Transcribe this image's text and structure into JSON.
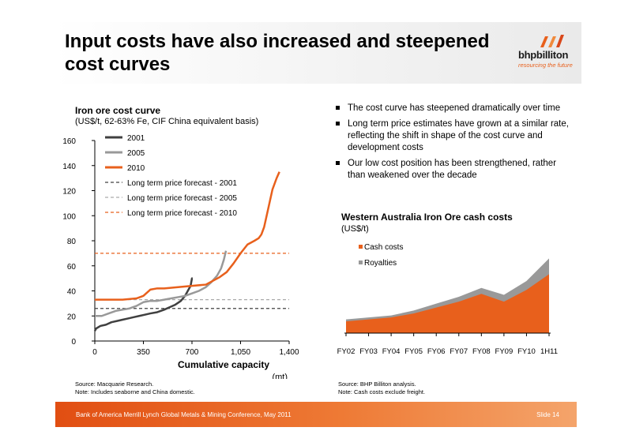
{
  "header": {
    "title": "Input costs have also increased and steepened cost curves",
    "logo_text": "bhpbilliton",
    "logo_tagline": "resourcing the future"
  },
  "left_chart": {
    "title": "Iron ore cost curve",
    "subtitle": "(US$/t, 62-63% Fe, CIF China equivalent basis)",
    "source": "Source:  Macquarie Research.",
    "note": "Note:  Includes seaborne and China domestic."
  },
  "bullets": [
    "The cost curve has steepened dramatically over time",
    "Long term price estimates have grown at a similar rate, reflecting the shift in shape of the cost curve and development costs",
    "Our low cost position has been strengthened, rather than weakened over the decade"
  ],
  "right_chart": {
    "title": "Western Australia Iron Ore cash costs",
    "subtitle": "(US$/t)",
    "source": "Source:  BHP Billiton analysis.",
    "note": "Note:  Cash costs exclude freight."
  },
  "footer": {
    "conference": "Bank of America Merrill Lynch Global Metals & Mining Conference, May 2011",
    "slide": "Slide 14"
  },
  "colors": {
    "accent": "#e8601c",
    "grey_series": "#999999",
    "dark_series": "#404040"
  },
  "chart_data": [
    {
      "type": "line",
      "title": "Iron ore cost curve",
      "xlabel": "Cumulative capacity",
      "xlabel_unit": "(mt)",
      "ylabel": "",
      "xlim": [
        0,
        1400
      ],
      "ylim": [
        0,
        160
      ],
      "xticks": [
        0,
        350,
        700,
        1050,
        1400
      ],
      "xtick_labels": [
        "0",
        "350",
        "700",
        "1,050",
        "1,400"
      ],
      "yticks": [
        0,
        20,
        40,
        60,
        80,
        100,
        120,
        140,
        160
      ],
      "ytick_labels": [
        "0",
        "20",
        "40",
        "60",
        "80",
        "100",
        "120",
        "140",
        "160"
      ],
      "legend_position": "top-left",
      "series": [
        {
          "name": "2001",
          "color": "#404040",
          "style": "solid",
          "width": 2.5,
          "x": [
            0,
            10,
            40,
            80,
            120,
            160,
            200,
            240,
            280,
            320,
            360,
            400,
            450,
            500,
            540,
            580,
            620,
            650,
            670,
            690,
            700,
            705
          ],
          "y": [
            8,
            10,
            12,
            13,
            15,
            16,
            17,
            18,
            19,
            20,
            21,
            22,
            23,
            25,
            27,
            29,
            32,
            36,
            40,
            44,
            50,
            50
          ]
        },
        {
          "name": "2005",
          "color": "#999999",
          "style": "solid",
          "width": 2.5,
          "x": [
            0,
            50,
            100,
            150,
            200,
            250,
            300,
            350,
            400,
            450,
            500,
            550,
            600,
            650,
            700,
            750,
            800,
            840,
            880,
            910,
            930,
            945
          ],
          "y": [
            20,
            20,
            22,
            24,
            25,
            26,
            28,
            31,
            32,
            32,
            33,
            34,
            35,
            36,
            38,
            40,
            43,
            47,
            52,
            58,
            65,
            72
          ]
        },
        {
          "name": "2010",
          "color": "#e8601c",
          "style": "solid",
          "width": 2.5,
          "x": [
            0,
            100,
            200,
            300,
            350,
            400,
            450,
            500,
            600,
            700,
            800,
            850,
            900,
            950,
            1000,
            1050,
            1100,
            1150,
            1180,
            1200,
            1220,
            1250,
            1280,
            1310,
            1330
          ],
          "y": [
            33,
            33,
            33,
            34,
            36,
            41,
            42,
            42,
            43,
            44,
            45,
            48,
            51,
            55,
            62,
            70,
            77,
            80,
            82,
            85,
            91,
            106,
            121,
            130,
            135
          ]
        },
        {
          "name": "Long term price forecast - 2001",
          "color": "#404040",
          "style": "dashed",
          "width": 1.2,
          "x": [
            0,
            1400
          ],
          "y": [
            26,
            26
          ]
        },
        {
          "name": "Long term price forecast - 2005",
          "color": "#aaaaaa",
          "style": "dashed",
          "width": 1.2,
          "x": [
            0,
            1400
          ],
          "y": [
            33,
            33
          ]
        },
        {
          "name": "Long term price forecast - 2010",
          "color": "#e8601c",
          "style": "dashed",
          "width": 1.2,
          "x": [
            0,
            1400
          ],
          "y": [
            70,
            70
          ]
        }
      ]
    },
    {
      "type": "area",
      "title": "Western Australia Iron Ore cash costs",
      "ylabel": "(US$/t)",
      "stacked": true,
      "categories": [
        "FY02",
        "FY03",
        "FY04",
        "FY05",
        "FY06",
        "FY07",
        "FY08",
        "FY09",
        "FY10",
        "1H11"
      ],
      "ylim": [
        0,
        45
      ],
      "legend_position": "top-left",
      "series": [
        {
          "name": "Cash costs",
          "color": "#e8601c",
          "values": [
            6,
            7,
            8,
            10,
            13,
            16,
            20,
            16,
            22,
            30
          ]
        },
        {
          "name": "Royalties",
          "color": "#999999",
          "values": [
            1,
            1,
            1,
            1.5,
            2,
            2.5,
            3,
            3.5,
            4.5,
            8
          ]
        }
      ]
    }
  ]
}
